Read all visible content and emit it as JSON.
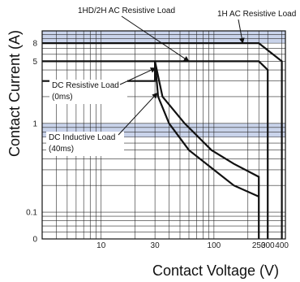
{
  "chart_data": {
    "type": "line",
    "xlabel": "Contact Voltage (V)",
    "ylabel": "Contact Current (A)",
    "x_scale": "log",
    "y_scale": "log",
    "xlim": [
      3,
      430
    ],
    "ylim": [
      0.05,
      11
    ],
    "x_ticks": [
      {
        "value": 10,
        "label": "10"
      },
      {
        "value": 30,
        "label": "30"
      },
      {
        "value": 100,
        "label": "100"
      },
      {
        "value": 250,
        "label": "250"
      },
      {
        "value": 300,
        "label": "300"
      },
      {
        "value": 400,
        "label": "400"
      }
    ],
    "y_ticks": [
      {
        "value": 0.05,
        "label": "0"
      },
      {
        "value": 0.1,
        "label": "0.1"
      },
      {
        "value": 1,
        "label": "1"
      },
      {
        "value": 5,
        "label": "5"
      },
      {
        "value": 8,
        "label": "8"
      }
    ],
    "grid": true,
    "shaded_bands": [
      {
        "y_from": 0.7,
        "y_to": 1
      },
      {
        "y_from": 8,
        "y_to": 11
      }
    ],
    "series": [
      {
        "name": "1H AC Resistive Load",
        "points": [
          [
            3,
            8
          ],
          [
            250,
            8
          ],
          [
            400,
            5
          ],
          [
            400,
            0.05
          ]
        ]
      },
      {
        "name": "1HD/2H AC Resistive Load",
        "points": [
          [
            3,
            5
          ],
          [
            250,
            5
          ],
          [
            300,
            4
          ],
          [
            300,
            0.05
          ]
        ]
      },
      {
        "name": "DC Resistive Load (0ms)",
        "points": [
          [
            3,
            3
          ],
          [
            30,
            3
          ],
          [
            30,
            5
          ],
          [
            35,
            2
          ],
          [
            55,
            1
          ],
          [
            95,
            0.5
          ],
          [
            150,
            0.35
          ],
          [
            250,
            0.25
          ],
          [
            250,
            0.05
          ]
        ]
      },
      {
        "name": "DC Inductive Load (40ms)",
        "points": [
          [
            30,
            5
          ],
          [
            32,
            2
          ],
          [
            40,
            1
          ],
          [
            60,
            0.5
          ],
          [
            100,
            0.3
          ],
          [
            150,
            0.2
          ],
          [
            250,
            0.15
          ]
        ]
      }
    ],
    "annotations": [
      {
        "text": "1HD/2H AC Resistive Load",
        "series": "1HD/2H AC Resistive Load"
      },
      {
        "text": "1H AC Resistive Load",
        "series": "1H AC Resistive Load"
      },
      {
        "text": "DC Resistive Load",
        "subtext": "(0ms)",
        "series": "DC Resistive Load (0ms)"
      },
      {
        "text": "DC Inductive Load",
        "subtext": "(40ms)",
        "series": "DC Inductive Load (40ms)"
      }
    ]
  }
}
